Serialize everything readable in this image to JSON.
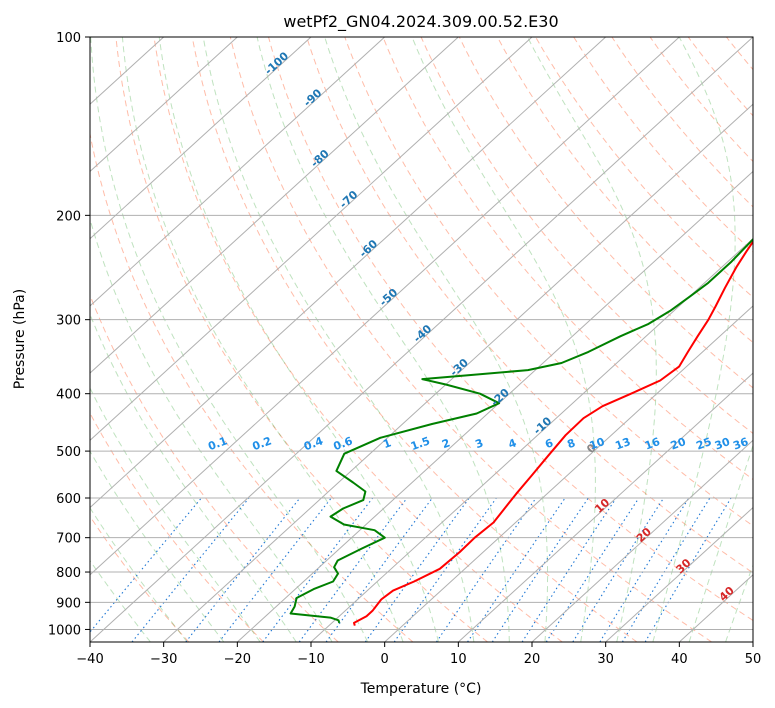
{
  "chart_data": {
    "type": "line",
    "title": "wetPf2_GN04.2024.309.00.52.E30",
    "xlabel": "Temperature (°C)",
    "ylabel": "Pressure (hPa)",
    "xlim": [
      -40,
      50
    ],
    "ylim": [
      1050,
      100
    ],
    "yscale": "log",
    "grid": true,
    "x_ticks": [
      -40,
      -30,
      -20,
      -10,
      0,
      10,
      20,
      30,
      40,
      50
    ],
    "x_tick_labels": [
      "−40",
      "−30",
      "−20",
      "−10",
      "0",
      "10",
      "20",
      "30",
      "40",
      "50"
    ],
    "y_ticks": [
      100,
      200,
      300,
      400,
      500,
      600,
      700,
      800,
      900,
      1000
    ],
    "y_tick_labels": [
      "100",
      "200",
      "300",
      "400",
      "500",
      "600",
      "700",
      "800",
      "900",
      "1000"
    ],
    "isotherm_labels": [
      {
        "text": "-100",
        "t": -100,
        "p": 112,
        "color": "#1f77b4"
      },
      {
        "text": "-90",
        "t": -90,
        "p": 128,
        "color": "#1f77b4"
      },
      {
        "text": "-80",
        "t": -80,
        "p": 162,
        "color": "#1f77b4"
      },
      {
        "text": "-70",
        "t": -70,
        "p": 190,
        "color": "#1f77b4"
      },
      {
        "text": "-60",
        "t": -60,
        "p": 230,
        "color": "#1f77b4"
      },
      {
        "text": "-50",
        "t": -50,
        "p": 278,
        "color": "#1f77b4"
      },
      {
        "text": "-40",
        "t": -40,
        "p": 320,
        "color": "#1f77b4"
      },
      {
        "text": "-30",
        "t": -30,
        "p": 365,
        "color": "#1f77b4"
      },
      {
        "text": "-20",
        "t": -20,
        "p": 410,
        "color": "#1f77b4"
      },
      {
        "text": "-10",
        "t": -10,
        "p": 458,
        "color": "#1f77b4"
      },
      {
        "text": "0",
        "t": 0,
        "p": 500,
        "color": "#888888"
      },
      {
        "text": "10",
        "t": 10,
        "p": 625,
        "color": "#d62728"
      },
      {
        "text": "20",
        "t": 20,
        "p": 700,
        "color": "#d62728"
      },
      {
        "text": "30",
        "t": 30,
        "p": 790,
        "color": "#d62728"
      },
      {
        "text": "40",
        "t": 40,
        "p": 880,
        "color": "#d62728"
      }
    ],
    "mixing_ratio_labels": [
      "0.1",
      "0.2",
      "0.4",
      "0.6",
      "1",
      "1.5",
      "2",
      "3",
      "4",
      "6",
      "8",
      "10",
      "13",
      "16",
      "20",
      "25",
      "30",
      "36"
    ],
    "mixing_ratio_label_x": [
      -22.5,
      -16.5,
      -9.5,
      -5.5,
      0.5,
      5,
      8.5,
      13,
      17.5,
      22.5,
      25.5,
      29,
      32.5,
      36.5,
      40,
      43.5,
      46,
      48.5
    ],
    "series": [
      {
        "color": "#ff0000",
        "points": [
          [
            2.5,
            100
          ],
          [
            1,
            110
          ],
          [
            -1,
            125
          ],
          [
            -4,
            140
          ],
          [
            -6.5,
            155
          ],
          [
            -8,
            170
          ],
          [
            -9.5,
            185
          ],
          [
            -10.5,
            200
          ],
          [
            -10,
            215
          ],
          [
            -9,
            230
          ],
          [
            -8,
            245
          ],
          [
            -6.5,
            265
          ],
          [
            -5,
            285
          ],
          [
            -4,
            300
          ],
          [
            -3,
            320
          ],
          [
            -2,
            340
          ],
          [
            -1,
            360
          ],
          [
            -1.5,
            380
          ],
          [
            -3.5,
            400
          ],
          [
            -5.5,
            420
          ],
          [
            -6.3,
            440
          ],
          [
            -6.2,
            470
          ],
          [
            -5.5,
            510
          ],
          [
            -4.8,
            550
          ],
          [
            -4.2,
            590
          ],
          [
            -3.5,
            630
          ],
          [
            -3,
            660
          ],
          [
            -3.3,
            700
          ],
          [
            -3.2,
            740
          ],
          [
            -3.4,
            790
          ],
          [
            -5,
            830
          ],
          [
            -6.5,
            860
          ],
          [
            -6.8,
            890
          ],
          [
            -6.3,
            930
          ],
          [
            -6.3,
            950
          ],
          [
            -7,
            975
          ],
          [
            -6.5,
            985
          ]
        ]
      },
      {
        "color": "#008000",
        "points": [
          [
            -1.5,
            100
          ],
          [
            -2.5,
            110
          ],
          [
            -3.5,
            120
          ],
          [
            -4.5,
            130
          ],
          [
            -6,
            140
          ],
          [
            -8,
            150
          ],
          [
            -9,
            160
          ],
          [
            -10.5,
            170
          ],
          [
            -12,
            180
          ],
          [
            -12.5,
            190
          ],
          [
            -11.5,
            200
          ],
          [
            -10,
            215
          ],
          [
            -9.5,
            240
          ],
          [
            -9.5,
            260
          ],
          [
            -10,
            275
          ],
          [
            -10.5,
            290
          ],
          [
            -11.5,
            305
          ],
          [
            -13.5,
            320
          ],
          [
            -15.5,
            340
          ],
          [
            -17.5,
            355
          ],
          [
            -21,
            365
          ],
          [
            -28,
            372
          ],
          [
            -34,
            378
          ],
          [
            -30,
            386
          ],
          [
            -24,
            400
          ],
          [
            -20,
            415
          ],
          [
            -21.5,
            432
          ],
          [
            -26,
            450
          ],
          [
            -31,
            475
          ],
          [
            -33.5,
            505
          ],
          [
            -32,
            540
          ],
          [
            -28,
            565
          ],
          [
            -25,
            585
          ],
          [
            -24,
            605
          ],
          [
            -25.5,
            625
          ],
          [
            -26,
            645
          ],
          [
            -23,
            665
          ],
          [
            -18,
            680
          ],
          [
            -15.5,
            700
          ],
          [
            -17,
            730
          ],
          [
            -18.5,
            765
          ],
          [
            -18,
            785
          ],
          [
            -16.5,
            805
          ],
          [
            -16,
            830
          ],
          [
            -17.5,
            855
          ],
          [
            -18.5,
            885
          ],
          [
            -17.5,
            915
          ],
          [
            -17,
            940
          ],
          [
            -13,
            950
          ],
          [
            -11,
            955
          ],
          [
            -9.5,
            965
          ],
          [
            -9,
            975
          ]
        ]
      }
    ]
  }
}
